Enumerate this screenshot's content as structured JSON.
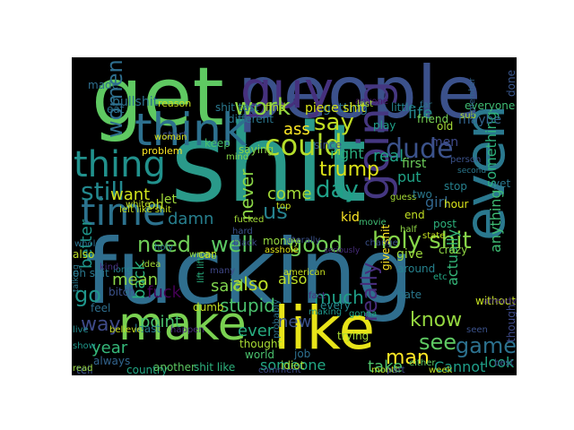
{
  "words": [
    {
      "text": "shit",
      "color": "#2a9a8a"
    },
    {
      "text": "fucking",
      "color": "#2f6e8e"
    },
    {
      "text": "get",
      "color": "#5fc962"
    },
    {
      "text": "people",
      "color": "#3b518b"
    },
    {
      "text": "like",
      "color": "#e8e419"
    },
    {
      "text": "make",
      "color": "#7ad151"
    },
    {
      "text": "even",
      "color": "#2a788e"
    },
    {
      "text": "think",
      "color": "#2d708e"
    },
    {
      "text": "guy",
      "color": "#46317e"
    },
    {
      "text": "thing",
      "color": "#21918c"
    },
    {
      "text": "time",
      "color": "#2c728e"
    },
    {
      "text": "going",
      "color": "#453781"
    },
    {
      "text": "still",
      "color": "#23888e"
    },
    {
      "text": "could",
      "color": "#b5de2b"
    },
    {
      "text": "say",
      "color": "#c2df23"
    },
    {
      "text": "dude",
      "color": "#3b528b"
    },
    {
      "text": "work",
      "color": "#8fd744"
    },
    {
      "text": "women",
      "color": "#2e6e8e"
    },
    {
      "text": "day",
      "color": "#1fa188"
    },
    {
      "text": "really",
      "color": "#472d7b"
    },
    {
      "text": "know",
      "color": "#95d840"
    },
    {
      "text": "holy shit",
      "color": "#86d549"
    },
    {
      "text": "need",
      "color": "#70cf57"
    },
    {
      "text": "well",
      "color": "#5cc863"
    },
    {
      "text": "good",
      "color": "#73d056"
    },
    {
      "text": "us",
      "color": "#26828e"
    },
    {
      "text": "game",
      "color": "#2c718e"
    },
    {
      "text": "way",
      "color": "#3e4a89"
    },
    {
      "text": "go",
      "color": "#1f958b"
    },
    {
      "text": "see",
      "color": "#5ec962"
    },
    {
      "text": "man",
      "color": "#fde725"
    },
    {
      "text": "want",
      "color": "#d0e11c"
    },
    {
      "text": "never",
      "color": "#8bd646"
    },
    {
      "text": "trump",
      "color": "#dde318"
    },
    {
      "text": "look",
      "color": "#22a785"
    },
    {
      "text": "back",
      "color": "#2ab07f"
    },
    {
      "text": "also",
      "color": "#bddf26"
    },
    {
      "text": "stupid",
      "color": "#4ac16d"
    },
    {
      "text": "ass",
      "color": "#fde725"
    },
    {
      "text": "also",
      "color": "#bddf26"
    },
    {
      "text": "mean",
      "color": "#8bd646"
    },
    {
      "text": "much",
      "color": "#1fa088"
    },
    {
      "text": "year",
      "color": "#35b779"
    },
    {
      "text": "take",
      "color": "#4ec36b"
    },
    {
      "text": "Cannot",
      "color": "#1f9e89"
    },
    {
      "text": "someone",
      "color": "#22a884"
    },
    {
      "text": "new",
      "color": "#3b528b"
    },
    {
      "text": "damn",
      "color": "#277f8e"
    },
    {
      "text": "life",
      "color": "#24868e"
    },
    {
      "text": "actually",
      "color": "#35b779"
    },
    {
      "text": "anything",
      "color": "#3fbc73"
    },
    {
      "text": "better",
      "color": "#1f968b"
    },
    {
      "text": "come",
      "color": "#a5db36"
    },
    {
      "text": "said",
      "color": "#7fd34e"
    },
    {
      "text": "point",
      "color": "#48c16e"
    },
    {
      "text": "ever",
      "color": "#27ad81"
    },
    {
      "text": "fuck",
      "color": "#440154"
    },
    {
      "text": "put",
      "color": "#20a386"
    },
    {
      "text": "girl",
      "color": "#31668e"
    },
    {
      "text": "real",
      "color": "#1fa287"
    },
    {
      "text": "something",
      "color": "#2db27d"
    },
    {
      "text": "right",
      "color": "#29af7f"
    },
    {
      "text": "kid",
      "color": "#fde725"
    },
    {
      "text": "let",
      "color": "#a0da39"
    },
    {
      "text": "oh",
      "color": "#c0df25"
    },
    {
      "text": "maybe",
      "color": "#32648e"
    },
    {
      "text": "first",
      "color": "#6ccd5a"
    },
    {
      "text": "getting",
      "color": "#2c728e"
    },
    {
      "text": "since",
      "color": "#3b528b"
    },
    {
      "text": "bullshit",
      "color": "#2c718e"
    },
    {
      "text": "reason",
      "color": "#c8e020"
    },
    {
      "text": "shit test",
      "color": "#2a788e"
    },
    {
      "text": "find",
      "color": "#b8de29"
    },
    {
      "text": "piece shit",
      "color": "#d8e219"
    },
    {
      "text": "anyone",
      "color": "#481a6c"
    },
    {
      "text": "little",
      "color": "#25848e"
    },
    {
      "text": "everyone",
      "color": "#3fbc73"
    },
    {
      "text": "sub",
      "color": "#b2dd2d"
    },
    {
      "text": "done",
      "color": "#39568c"
    },
    {
      "text": "men",
      "color": "#3e4989"
    },
    {
      "text": "friend",
      "color": "#75d054"
    },
    {
      "text": "play",
      "color": "#1f9f88"
    },
    {
      "text": "stop",
      "color": "#26818e"
    },
    {
      "text": "hour",
      "color": "#dae319"
    },
    {
      "text": "post",
      "color": "#2db27d"
    },
    {
      "text": "money",
      "color": "#93d741"
    },
    {
      "text": "give shit",
      "color": "#fde725"
    },
    {
      "text": "give",
      "color": "#9dd93b"
    },
    {
      "text": "crazy",
      "color": "#90d743"
    },
    {
      "text": "without",
      "color": "#c5e021"
    },
    {
      "text": "around",
      "color": "#26828e"
    },
    {
      "text": "hate",
      "color": "#2a788e"
    },
    {
      "text": "etc",
      "color": "#22a884"
    },
    {
      "text": "though",
      "color": "#3e4a89"
    },
    {
      "text": "trying",
      "color": "#a8db34"
    },
    {
      "text": "thought",
      "color": "#a8db34"
    },
    {
      "text": "world",
      "color": "#4ac16d"
    },
    {
      "text": "probably",
      "color": "#2c728e"
    },
    {
      "text": "job",
      "color": "#2d708e"
    },
    {
      "text": "every",
      "color": "#24878e"
    },
    {
      "text": "least",
      "color": "#2a788e"
    },
    {
      "text": "bitch",
      "color": "#3b528b"
    },
    {
      "text": "dumb",
      "color": "#c2df23"
    },
    {
      "text": "asshole",
      "color": "#dde318"
    },
    {
      "text": "american",
      "color": "#c8e020"
    },
    {
      "text": "also",
      "color": "#bddf26"
    },
    {
      "text": "oh shit",
      "color": "#2a788e"
    },
    {
      "text": "long",
      "color": "#25848e"
    },
    {
      "text": "idea",
      "color": "#a2da37"
    },
    {
      "text": "wrong",
      "color": "#8fd744"
    },
    {
      "text": "always",
      "color": "#32648e"
    },
    {
      "text": "country",
      "color": "#22a785"
    },
    {
      "text": "another",
      "color": "#5ec962"
    },
    {
      "text": "shit like",
      "color": "#2db27d"
    },
    {
      "text": "comment",
      "color": "#3e4a89"
    },
    {
      "text": "tell",
      "color": "#3b528b"
    },
    {
      "text": "show",
      "color": "#1f988b"
    },
    {
      "text": "read",
      "color": "#98d83e"
    },
    {
      "text": "feel",
      "color": "#2e6f8e"
    },
    {
      "text": "live",
      "color": "#238a8d"
    },
    {
      "text": "believe",
      "color": "#c8e020"
    },
    {
      "text": "happen",
      "color": "#472d7b"
    },
    {
      "text": "start",
      "color": "#3b528b"
    },
    {
      "text": "problem",
      "color": "#fde725"
    },
    {
      "text": "literally",
      "color": "#3b528b"
    },
    {
      "text": "saying",
      "color": "#86d549"
    },
    {
      "text": "woman",
      "color": "#d8e219"
    },
    {
      "text": "white",
      "color": "#bddf26"
    },
    {
      "text": "left like shit",
      "color": "#c5e021"
    },
    {
      "text": "keep",
      "color": "#4ac16d"
    },
    {
      "text": "different",
      "color": "#2a768e"
    },
    {
      "text": "eat",
      "color": "#2c728e"
    },
    {
      "text": "made",
      "color": "#2e6e8e"
    },
    {
      "text": "fucked",
      "color": "#a2da37"
    },
    {
      "text": "car",
      "color": "#c8e020"
    },
    {
      "text": "many",
      "color": "#3f4788"
    },
    {
      "text": "whole",
      "color": "#2c718e"
    },
    {
      "text": "holy",
      "color": "#2a768e"
    },
    {
      "text": "kind",
      "color": "#472d7b"
    },
    {
      "text": "talking",
      "color": "#2a788e"
    },
    {
      "text": "lift lift",
      "color": "#2ab07f"
    },
    {
      "text": "idiot",
      "color": "#a5db36"
    },
    {
      "text": "making",
      "color": "#1f988b"
    },
    {
      "text": "month",
      "color": "#bddf26"
    },
    {
      "text": "seen",
      "color": "#3b528b"
    },
    {
      "text": "week",
      "color": "#c2df23"
    },
    {
      "text": "either",
      "color": "#5ec962"
    },
    {
      "text": "part",
      "color": "#3e4a89"
    },
    {
      "text": "best",
      "color": "#3b528b"
    },
    {
      "text": "guess",
      "color": "#a5db36"
    },
    {
      "text": "yet",
      "color": "#2a788e"
    },
    {
      "text": "change",
      "color": "#3b528b"
    },
    {
      "text": "movie",
      "color": "#3fbc73"
    },
    {
      "text": "end",
      "color": "#c2df23"
    },
    {
      "text": "half",
      "color": "#8fd744"
    },
    {
      "text": "state",
      "color": "#c5e021"
    },
    {
      "text": "two",
      "color": "#2a788e"
    },
    {
      "text": "hard",
      "color": "#3b528b"
    },
    {
      "text": "black",
      "color": "#3e4a89"
    },
    {
      "text": "last",
      "color": "#a8db34"
    },
    {
      "text": "old",
      "color": "#a5db36"
    },
    {
      "text": "far",
      "color": "#2c728e"
    },
    {
      "text": "person",
      "color": "#3b528b"
    },
    {
      "text": "second",
      "color": "#2a788e"
    },
    {
      "text": "top",
      "color": "#c8e020"
    },
    {
      "text": "fact",
      "color": "#472d7b"
    },
    {
      "text": "already",
      "color": "#472d7b"
    },
    {
      "text": "gonna",
      "color": "#22a884"
    },
    {
      "text": "mind",
      "color": "#86d549"
    },
    {
      "text": "remember",
      "color": "#32648e"
    },
    {
      "text": "seriously",
      "color": "#472d7b"
    }
  ]
}
